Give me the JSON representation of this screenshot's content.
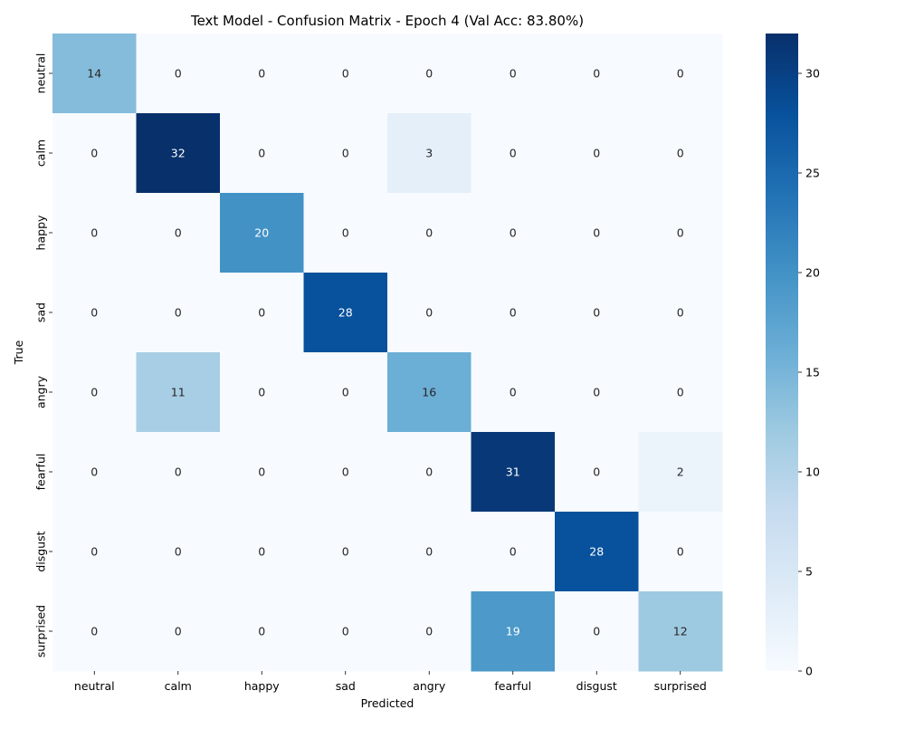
{
  "chart_data": {
    "type": "heatmap",
    "title": "Text Model - Confusion Matrix - Epoch 4 (Val Acc: 83.80%)",
    "xlabel": "Predicted",
    "ylabel": "True",
    "x_categories": [
      "neutral",
      "calm",
      "happy",
      "sad",
      "angry",
      "fearful",
      "disgust",
      "surprised"
    ],
    "y_categories": [
      "neutral",
      "calm",
      "happy",
      "sad",
      "angry",
      "fearful",
      "disgust",
      "surprised"
    ],
    "values": [
      [
        14,
        0,
        0,
        0,
        0,
        0,
        0,
        0
      ],
      [
        0,
        32,
        0,
        0,
        3,
        0,
        0,
        0
      ],
      [
        0,
        0,
        20,
        0,
        0,
        0,
        0,
        0
      ],
      [
        0,
        0,
        0,
        28,
        0,
        0,
        0,
        0
      ],
      [
        0,
        11,
        0,
        0,
        16,
        0,
        0,
        0
      ],
      [
        0,
        0,
        0,
        0,
        0,
        31,
        0,
        2
      ],
      [
        0,
        0,
        0,
        0,
        0,
        0,
        28,
        0
      ],
      [
        0,
        0,
        0,
        0,
        0,
        19,
        0,
        12
      ]
    ],
    "colorbar": {
      "range": [
        0,
        32
      ],
      "ticks": [
        0,
        5,
        10,
        15,
        20,
        25,
        30
      ],
      "colormap": "Blues"
    }
  }
}
